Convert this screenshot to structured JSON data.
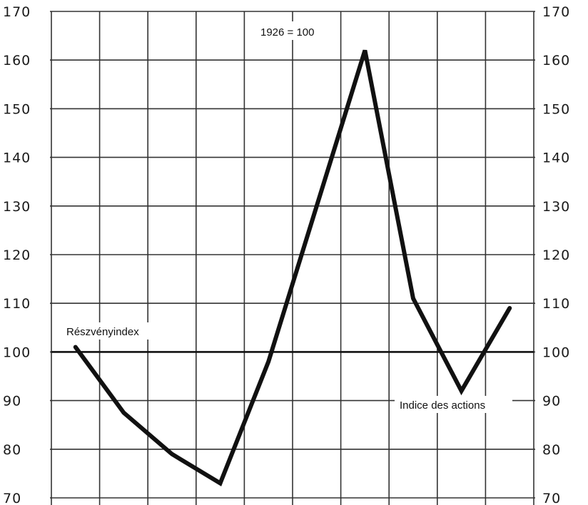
{
  "chart_data": {
    "type": "line",
    "title": "",
    "xlabel": "",
    "ylabel": "",
    "ylim": [
      70,
      170
    ],
    "yticks": [
      "170",
      "160",
      "150",
      "140",
      "130",
      "120",
      "110",
      "100",
      "90",
      "80",
      "70"
    ],
    "x": [
      1,
      2,
      3,
      4,
      5,
      6,
      7,
      8,
      9,
      10
    ],
    "series": [
      {
        "name": "Indice des actions",
        "values": [
          101,
          87.5,
          79,
          73,
          98,
          130,
          162,
          111,
          92,
          109
        ]
      }
    ],
    "reference_line": 100,
    "grid": true,
    "annotations": {
      "base": "1926 = 100",
      "left_label": "Részvényindex",
      "right_label": "Indice des actions"
    }
  }
}
